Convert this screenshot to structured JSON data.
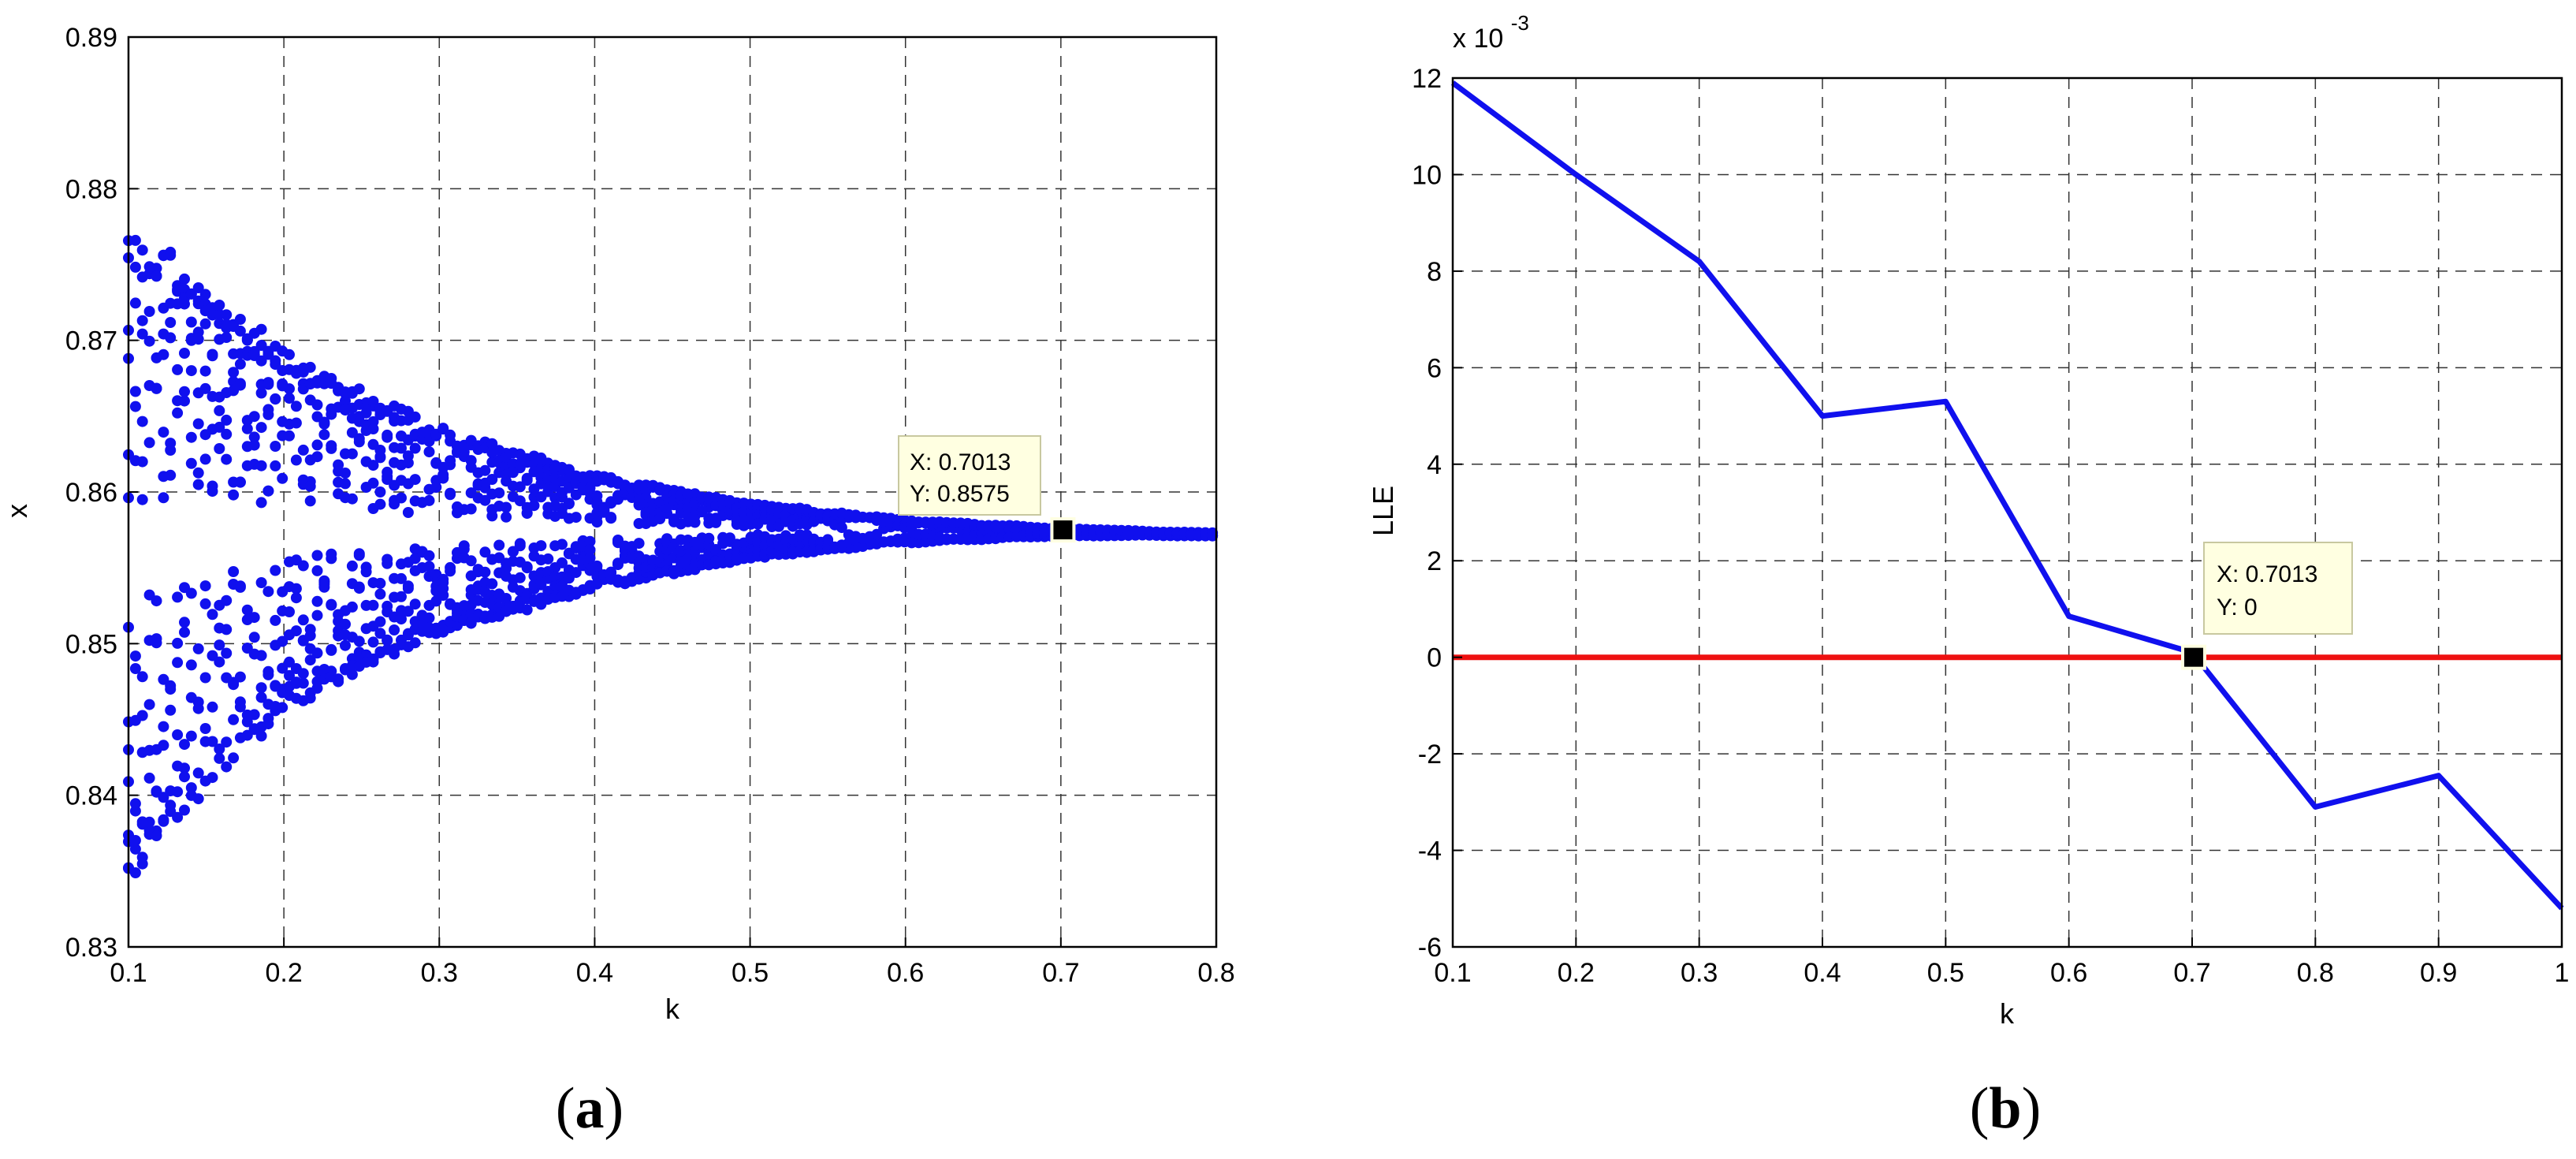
{
  "chart_data": [
    {
      "type": "scatter",
      "panel_label": "a",
      "title": "",
      "xlabel": "k",
      "ylabel": "x",
      "xlim": [
        0.1,
        0.8
      ],
      "ylim": [
        0.83,
        0.89
      ],
      "xticks": [
        "0.1",
        "0.2",
        "0.3",
        "0.4",
        "0.5",
        "0.6",
        "0.7",
        "0.8"
      ],
      "yticks": [
        "0.83",
        "0.84",
        "0.85",
        "0.86",
        "0.87",
        "0.88",
        "0.89"
      ],
      "grid": true,
      "marker_color": "#1010ee",
      "series": [
        {
          "name": "",
          "description_of_envelope": "bifurcation band",
          "upper_envelope": {
            "x": [
              0.1,
              0.2,
              0.3,
              0.4,
              0.5,
              0.6,
              0.7,
              0.8
            ],
            "y": [
              0.8782,
              0.8695,
              0.8643,
              0.8612,
              0.8593,
              0.8582,
              0.8576,
              0.8573
            ]
          },
          "lower_envelope": {
            "x": [
              0.1,
              0.2,
              0.3,
              0.4,
              0.5,
              0.6,
              0.7,
              0.8
            ],
            "y": [
              0.8342,
              0.8455,
              0.8505,
              0.8535,
              0.8556,
              0.8566,
              0.8571,
              0.8571
            ]
          }
        }
      ],
      "datatip": {
        "x_label": "X: 0.7013",
        "y_label": "Y: 0.8575",
        "x": 0.7013,
        "y": 0.8575
      }
    },
    {
      "type": "line",
      "panel_label": "b",
      "title": "",
      "xlabel": "k",
      "ylabel": "LLE",
      "y_exponent_label": "x 10",
      "y_exponent_power": "-3",
      "xlim": [
        0.1,
        1.0
      ],
      "ylim": [
        -6,
        12
      ],
      "xticks": [
        "0.1",
        "0.2",
        "0.3",
        "0.4",
        "0.5",
        "0.6",
        "0.7",
        "0.8",
        "0.9",
        "1"
      ],
      "yticks": [
        "-6",
        "-4",
        "-2",
        "0",
        "2",
        "4",
        "6",
        "8",
        "10",
        "12"
      ],
      "grid": true,
      "series": [
        {
          "name": "",
          "color": "#1010ee",
          "x": [
            0.1,
            0.2,
            0.3,
            0.4,
            0.5,
            0.6,
            0.7,
            0.8,
            0.9,
            1.0
          ],
          "y": [
            11.9,
            10.0,
            8.2,
            5.0,
            5.3,
            0.85,
            0.1,
            -3.1,
            -2.45,
            -5.2
          ]
        },
        {
          "name": "",
          "color": "#ee1010",
          "x": [
            0.1,
            1.0
          ],
          "y": [
            0,
            0
          ]
        }
      ],
      "datatip": {
        "x_label": "X: 0.7013",
        "y_label": "Y: 0",
        "x": 0.7013,
        "y": 0
      }
    }
  ],
  "captions": [
    {
      "open": "(",
      "letter": "a",
      "close": ")"
    },
    {
      "open": "(",
      "letter": "b",
      "close": ")"
    }
  ]
}
